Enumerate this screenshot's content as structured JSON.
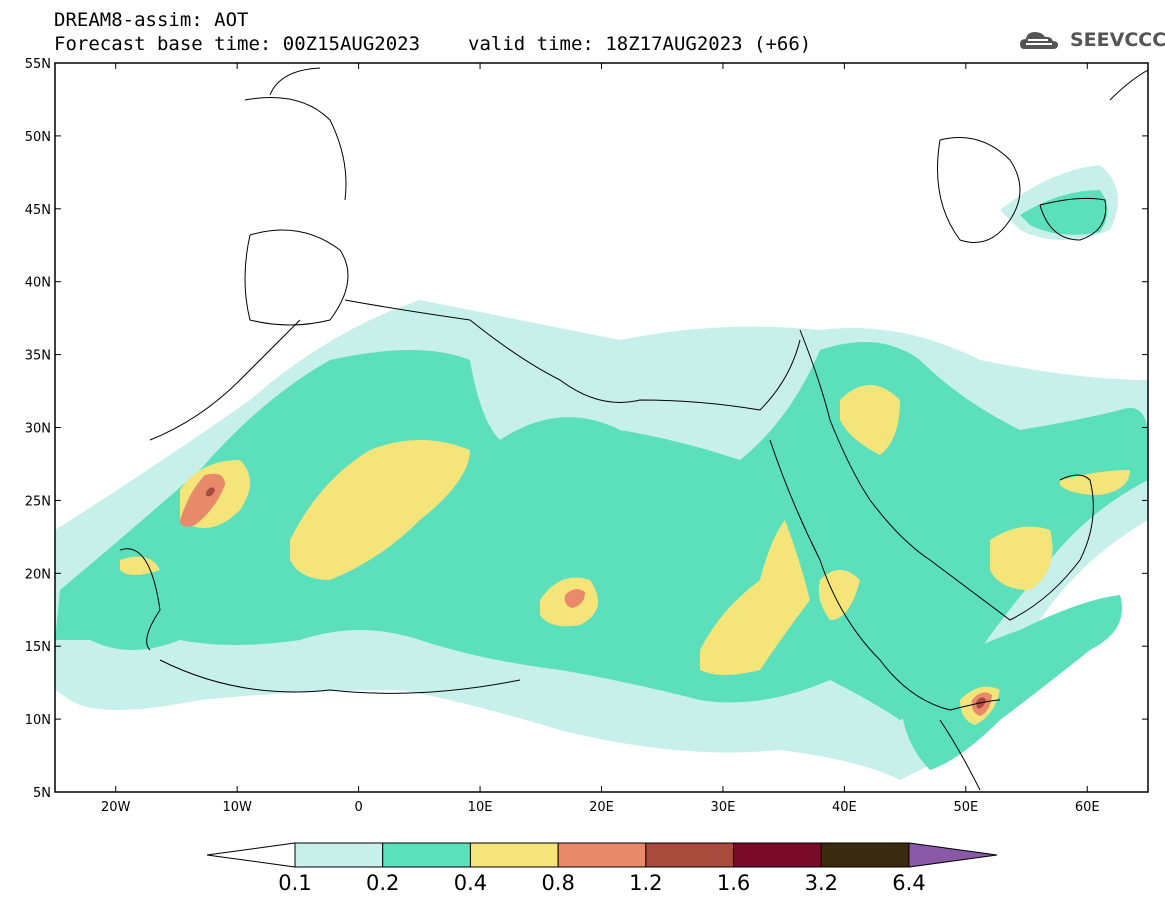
{
  "header": {
    "title": "DREAM8-assim: AOT",
    "base_time": "Forecast base time: 00Z15AUG2023",
    "valid_time": "valid time: 18Z17AUG2023 (+66)"
  },
  "logo": {
    "text": "SEEVCCC",
    "icon": "cloud-logo-icon"
  },
  "map": {
    "lon_range": [
      -25,
      65
    ],
    "lat_range": [
      5,
      55
    ],
    "lat_ticks": [
      {
        "v": 55,
        "label": "55N"
      },
      {
        "v": 50,
        "label": "50N"
      },
      {
        "v": 45,
        "label": "45N"
      },
      {
        "v": 40,
        "label": "40N"
      },
      {
        "v": 35,
        "label": "35N"
      },
      {
        "v": 30,
        "label": "30N"
      },
      {
        "v": 25,
        "label": "25N"
      },
      {
        "v": 20,
        "label": "20N"
      },
      {
        "v": 15,
        "label": "15N"
      },
      {
        "v": 10,
        "label": "10N"
      },
      {
        "v": 5,
        "label": "5N"
      }
    ],
    "lon_ticks": [
      {
        "v": -20,
        "label": "20W"
      },
      {
        "v": -10,
        "label": "10W"
      },
      {
        "v": 0,
        "label": "0"
      },
      {
        "v": 10,
        "label": "10E"
      },
      {
        "v": 20,
        "label": "20E"
      },
      {
        "v": 30,
        "label": "30E"
      },
      {
        "v": 40,
        "label": "40E"
      },
      {
        "v": 50,
        "label": "50E"
      },
      {
        "v": 60,
        "label": "60E"
      }
    ]
  },
  "colorbar": {
    "levels": [
      "0.1",
      "0.2",
      "0.4",
      "0.8",
      "1.2",
      "1.6",
      "3.2",
      "6.4"
    ],
    "colors": [
      "#ffffff",
      "#c8f0ea",
      "#5ce0bc",
      "#f5e47a",
      "#e8896a",
      "#a84a3c",
      "#7a0a2a",
      "#3a2a10",
      "#8a5aa8"
    ]
  }
}
